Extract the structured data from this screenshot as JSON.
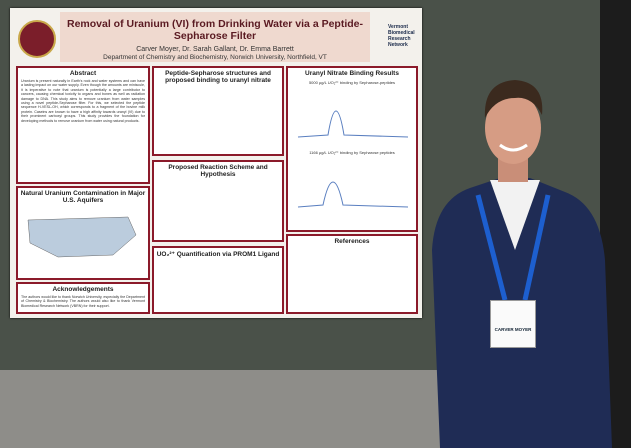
{
  "poster": {
    "title": "Removal of Uranium (VI) from Drinking Water via a Peptide-Sepharose Filter",
    "authors": "Carver Moyer, Dr. Sarah Gallant, Dr. Emma Barrett",
    "department": "Department of Chemistry and Biochemistry, Norwich University, Northfield, VT",
    "sponsor": "Vermont Biomedical Research Network",
    "panels": [
      {
        "heading": "Abstract",
        "body": "Uranium is present naturally in Earth's rock and water systems and can have a lasting impact on our water supply. Even though the amounts are miniscule, it is imperative to note that uranium is potentially a large contributor to cancers, causing chemical toxicity to organs and bones as well as radiation damage to DNA. This study aims to remove uranium from water samples using a novel peptide-Sepharose filter. For this, we selected the peptide sequence H-VESL-OH, which corresponds to a fragment of the bovine milk protein. Caseins are known to have a high affinity towards uranyl (VI) due to their prominent carboxyl groups. This study provides the foundation for developing methods to remove uranium from water using natural products."
      },
      {
        "heading": "Peptide-Sepharose structures and proposed binding to uranyl nitrate"
      },
      {
        "heading": "Uranyl Nitrate Binding Results",
        "plots": [
          "5000 µg/L UO₂²⁺ binding by Sepharose-peptides",
          "1166 µg/L UO₂²⁺ binding by Sepharose peptides"
        ]
      },
      {
        "heading": "Natural Uranium Contamination in Major U.S. Aquifers"
      },
      {
        "heading": "Proposed Reaction Scheme and Hypothesis"
      },
      {
        "heading": "UO₂²⁺ Quantification via PROM1 Ligand"
      },
      {
        "heading": "Acknowledgements",
        "body": "The authors would like to thank Norwich University, especially the Department of Chemistry & Biochemistry. The authors would also like to thank Vermont Biomedical Research Network (VBRN) for their support."
      },
      {
        "heading": "References"
      }
    ]
  },
  "badge": {
    "name": "CARVER MOYER"
  }
}
